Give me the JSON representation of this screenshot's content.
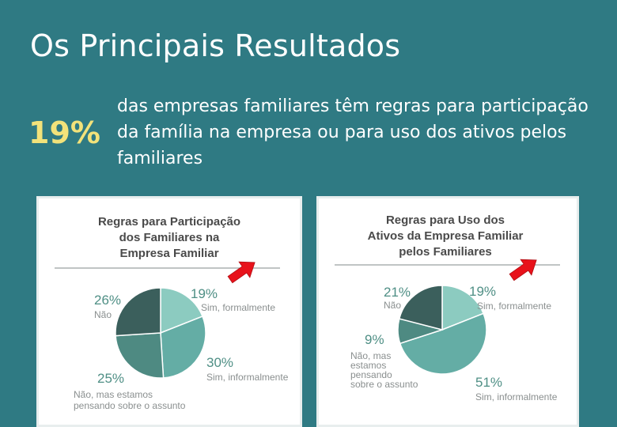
{
  "slide": {
    "title": "Os Principais Resultados",
    "highlight_value": "19%",
    "highlight_text": "das empresas familiares têm regras para participação da família na empresa ou para uso dos ativos pelos familiares"
  },
  "colors": {
    "background": "#2f7a83",
    "highlight": "#f2e27a",
    "dark_slice": "#3b5f5c",
    "mid_slice": "#4e8a82",
    "light_slice": "#8ccbc0",
    "teal_slice": "#64ada5",
    "arrow": "#e8121b",
    "pct_text": "#4f8f85",
    "label_text": "#8a8f8f"
  },
  "chart_data": [
    {
      "type": "pie",
      "title_lines": [
        "Regras para Participação",
        "dos Familiares na",
        "Empresa Familiar"
      ],
      "slices": [
        {
          "value": 19,
          "pct_label": "19%",
          "label_lines": [
            "Sim, formalmente"
          ],
          "color": "#8ccbc0",
          "highlighted": true
        },
        {
          "value": 30,
          "pct_label": "30%",
          "label_lines": [
            "Sim, informalmente"
          ],
          "color": "#64ada5"
        },
        {
          "value": 25,
          "pct_label": "25%",
          "label_lines": [
            "Não, mas estamos",
            "pensando sobre o assunto"
          ],
          "color": "#4e8a82"
        },
        {
          "value": 26,
          "pct_label": "26%",
          "label_lines": [
            "Não"
          ],
          "color": "#3b5f5c"
        }
      ]
    },
    {
      "type": "pie",
      "title_lines": [
        "Regras para Uso dos",
        "Ativos da Empresa Familiar",
        "pelos Familiares"
      ],
      "slices": [
        {
          "value": 19,
          "pct_label": "19%",
          "label_lines": [
            "Sim, formalmente"
          ],
          "color": "#8ccbc0",
          "highlighted": true
        },
        {
          "value": 51,
          "pct_label": "51%",
          "label_lines": [
            "Sim, informalmente"
          ],
          "color": "#64ada5"
        },
        {
          "value": 9,
          "pct_label": "9%",
          "label_lines": [
            "Não, mas",
            "estamos",
            "pensando",
            "sobre o assunto"
          ],
          "color": "#4e8a82"
        },
        {
          "value": 21,
          "pct_label": "21%",
          "label_lines": [
            "Não"
          ],
          "color": "#3b5f5c"
        }
      ]
    }
  ]
}
